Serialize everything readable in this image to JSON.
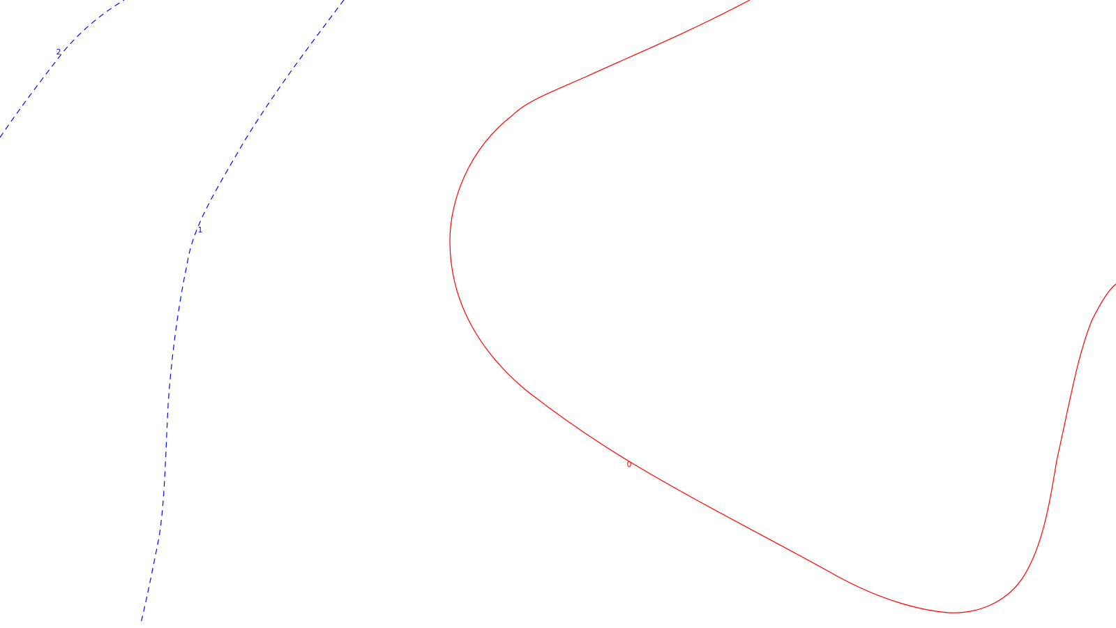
{
  "chart_data": {
    "type": "contour",
    "levels": [
      {
        "value": 0,
        "label": "0",
        "color": "#ff0000",
        "style": "solid"
      },
      {
        "value": 1,
        "label": "1",
        "color": "#0000ff",
        "style": "dashed"
      },
      {
        "value": 2,
        "label": "2",
        "color": "#0000ff",
        "style": "dashed"
      }
    ],
    "axes_visible": false,
    "grid": false,
    "legend": "none"
  }
}
